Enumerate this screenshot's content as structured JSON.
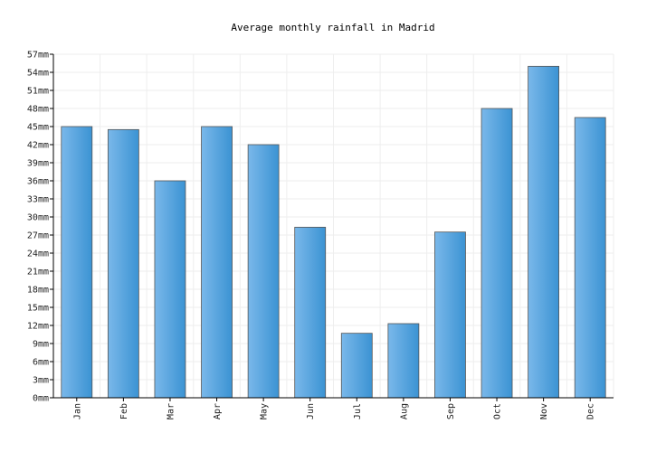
{
  "chart_data": {
    "type": "bar",
    "title": "Average monthly rainfall in Madrid",
    "xlabel": "",
    "ylabel": "",
    "unit": "mm",
    "categories": [
      "Jan",
      "Feb",
      "Mar",
      "Apr",
      "May",
      "Jun",
      "Jul",
      "Aug",
      "Sep",
      "Oct",
      "Nov",
      "Dec"
    ],
    "values": [
      45,
      44.5,
      36,
      45,
      42,
      28.3,
      10.7,
      12.3,
      27.5,
      48,
      55,
      46.5
    ],
    "ylim": [
      0,
      57
    ],
    "yticks": [
      "0mm",
      "3mm",
      "6mm",
      "9mm",
      "12mm",
      "15mm",
      "18mm",
      "21mm",
      "24mm",
      "27mm",
      "30mm",
      "33mm",
      "36mm",
      "39mm",
      "42mm",
      "45mm",
      "48mm",
      "51mm",
      "54mm",
      "57mm"
    ],
    "grid": true,
    "legend": "none",
    "colors": {
      "bar_light": "#7ab8ea",
      "bar_dark": "#3b93d3",
      "bar_stroke": "#555555"
    }
  }
}
